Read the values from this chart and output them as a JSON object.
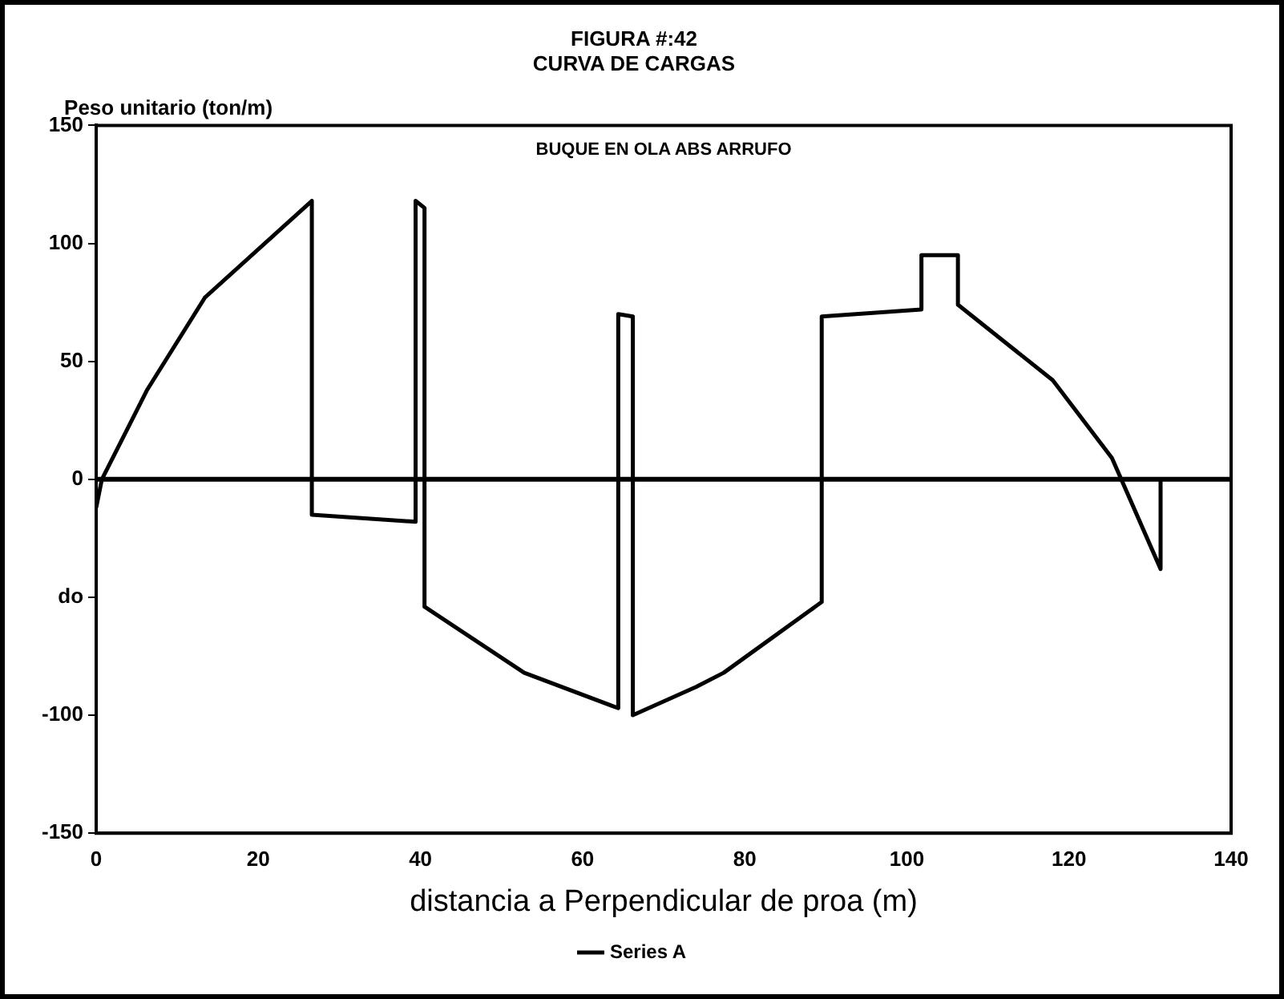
{
  "chart_data": {
    "type": "line",
    "title": [
      "FIGURA #:42",
      "CURVA DE CARGAS"
    ],
    "xlabel": "distancia a Perpendicular de proa (m)",
    "ylabel": "Peso unitario (ton/m)",
    "annotations": [
      "BUQUE EN OLA ABS ARRUFO"
    ],
    "xlim": [
      0,
      140
    ],
    "xticks": [
      0,
      20,
      40,
      60,
      80,
      100,
      120,
      140
    ],
    "ylim": [
      -150,
      150
    ],
    "yticks": [
      -150,
      -100,
      {
        "value": -50,
        "label": "do"
      },
      0,
      50,
      100,
      150
    ],
    "series": [
      {
        "name": "Series A",
        "color": "#000000",
        "x": [
          0,
          0.7,
          6.3,
          13.4,
          26.6,
          26.6,
          39.4,
          39.4,
          40.5,
          40.5,
          52.8,
          64.4,
          64.4,
          66.2,
          66.2,
          74,
          77.4,
          89.5,
          89.5,
          101.8,
          101.8,
          106.3,
          106.3,
          118,
          125.3,
          131.3,
          131.3
        ],
        "values": [
          -12,
          0,
          38,
          77,
          118,
          -15,
          -18,
          118,
          115,
          -54,
          -82,
          -97,
          70,
          69,
          -100,
          -88,
          -82,
          -52,
          69,
          72,
          95,
          95,
          74,
          42,
          9,
          -38,
          0
        ]
      }
    ],
    "ref_lines": [
      {
        "axis": "y",
        "value": 0
      }
    ],
    "grid": false,
    "legend": "bottom",
    "marker": "none",
    "line_style": "solid"
  }
}
